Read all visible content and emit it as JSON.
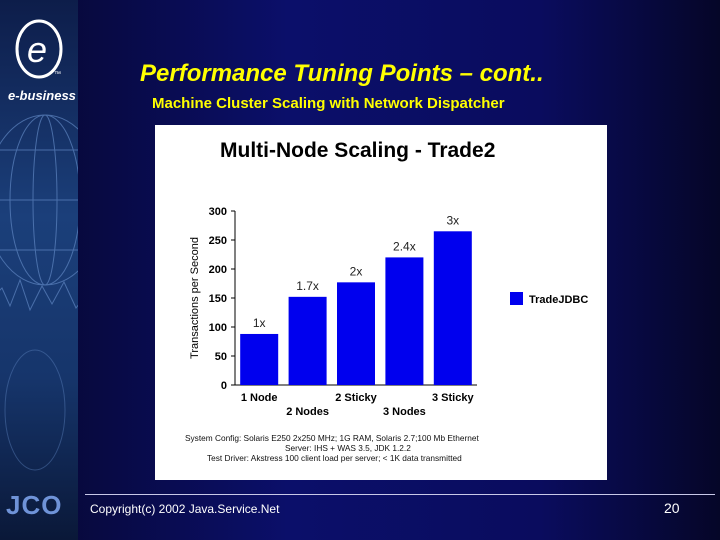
{
  "header": {
    "title": "Performance Tuning Points – cont..",
    "subtitle": "Machine Cluster Scaling with Network Dispatcher"
  },
  "sidebar": {
    "logo_letter": "e",
    "logo_tm": "™",
    "brand_text": "e-business",
    "footer_logo": "JCO"
  },
  "footer": {
    "copyright": "Copyright(c) 2002 Java.Service.Net",
    "page_number": "20"
  },
  "colors": {
    "title": "#ffff00",
    "bar": "#0000ee",
    "background": "#0b0f6a"
  },
  "chart_data": {
    "type": "bar",
    "title": "Multi-Node Scaling - Trade2",
    "ylabel": "Transactions per Second",
    "xlabel": "",
    "ylim": [
      0,
      300
    ],
    "yticks": [
      0,
      50,
      100,
      150,
      200,
      250,
      300
    ],
    "categories": [
      "1 Node",
      "2 Nodes",
      "2 Sticky",
      "3 Nodes",
      "3 Sticky"
    ],
    "series": [
      {
        "name": "TradeJDBC",
        "values": [
          88,
          152,
          177,
          220,
          265
        ]
      }
    ],
    "data_labels": [
      "1x",
      "1.7x",
      "2x",
      "2.4x",
      "3x"
    ],
    "legend_position": "right",
    "grid": false,
    "notes": [
      "System Config: Solaris E250 2x250 MHz; 1G RAM, Solaris 2.7;100 Mb Ethernet",
      "Server: IHS + WAS 3.5, JDK 1.2.2",
      "Test Driver: Akstress 100 client load per server; < 1K data transmitted"
    ]
  }
}
